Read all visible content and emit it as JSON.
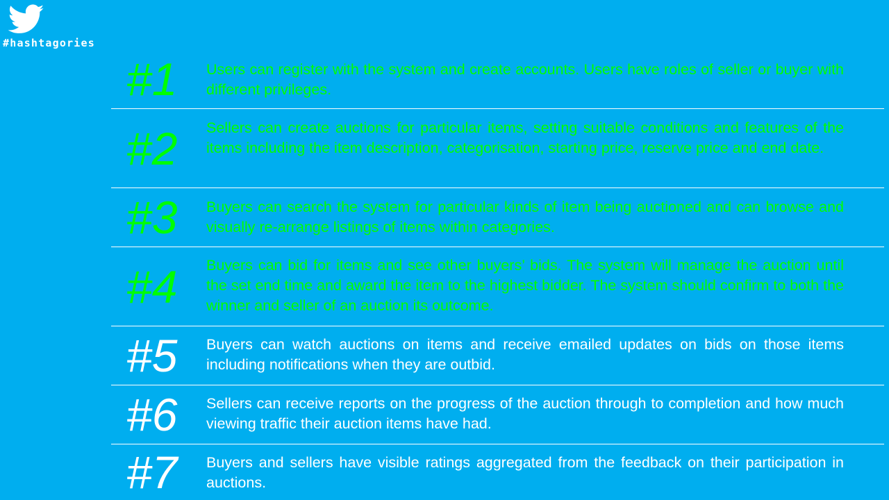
{
  "logo": {
    "icon": "twitter-bird-icon",
    "text": "#hashtagories"
  },
  "colors": {
    "background": "#00AEEF",
    "highlight": "#00FF00",
    "normal": "#FFFFFF"
  },
  "requirements": [
    {
      "number": "#1",
      "text": "Users can register with the system and create accounts. Users have roles of seller or buyer with different privileges.",
      "highlighted": true
    },
    {
      "number": "#2",
      "text": "Sellers can create auctions for particular items, setting suitable conditions and features of the items including the item description, categorisation, starting price, reserve price and end date.",
      "highlighted": true
    },
    {
      "number": "#3",
      "text": "Buyers can search the system for particular kinds of item being auctioned and can browse and visually re-arrange listings of items within categories.",
      "highlighted": true
    },
    {
      "number": "#4",
      "text": "Buyers can bid for items and see other buyers’ bids. The system will manage the auction until the set end time and award the item to the highest bidder. The system should confirm to both the winner and seller of an auction its outcome.",
      "highlighted": true
    },
    {
      "number": "#5",
      "text": "Buyers can watch auctions on items and receive emailed updates on bids on those items including notifications when they are outbid.",
      "highlighted": false
    },
    {
      "number": "#6",
      "text": "Sellers can receive reports on the progress of the auction through to completion and how much viewing traffic their auction items have had.",
      "highlighted": false
    },
    {
      "number": "#7",
      "text": "Buyers and sellers have visible ratings aggregated from the feedback on their participation in auctions.",
      "highlighted": false
    }
  ]
}
